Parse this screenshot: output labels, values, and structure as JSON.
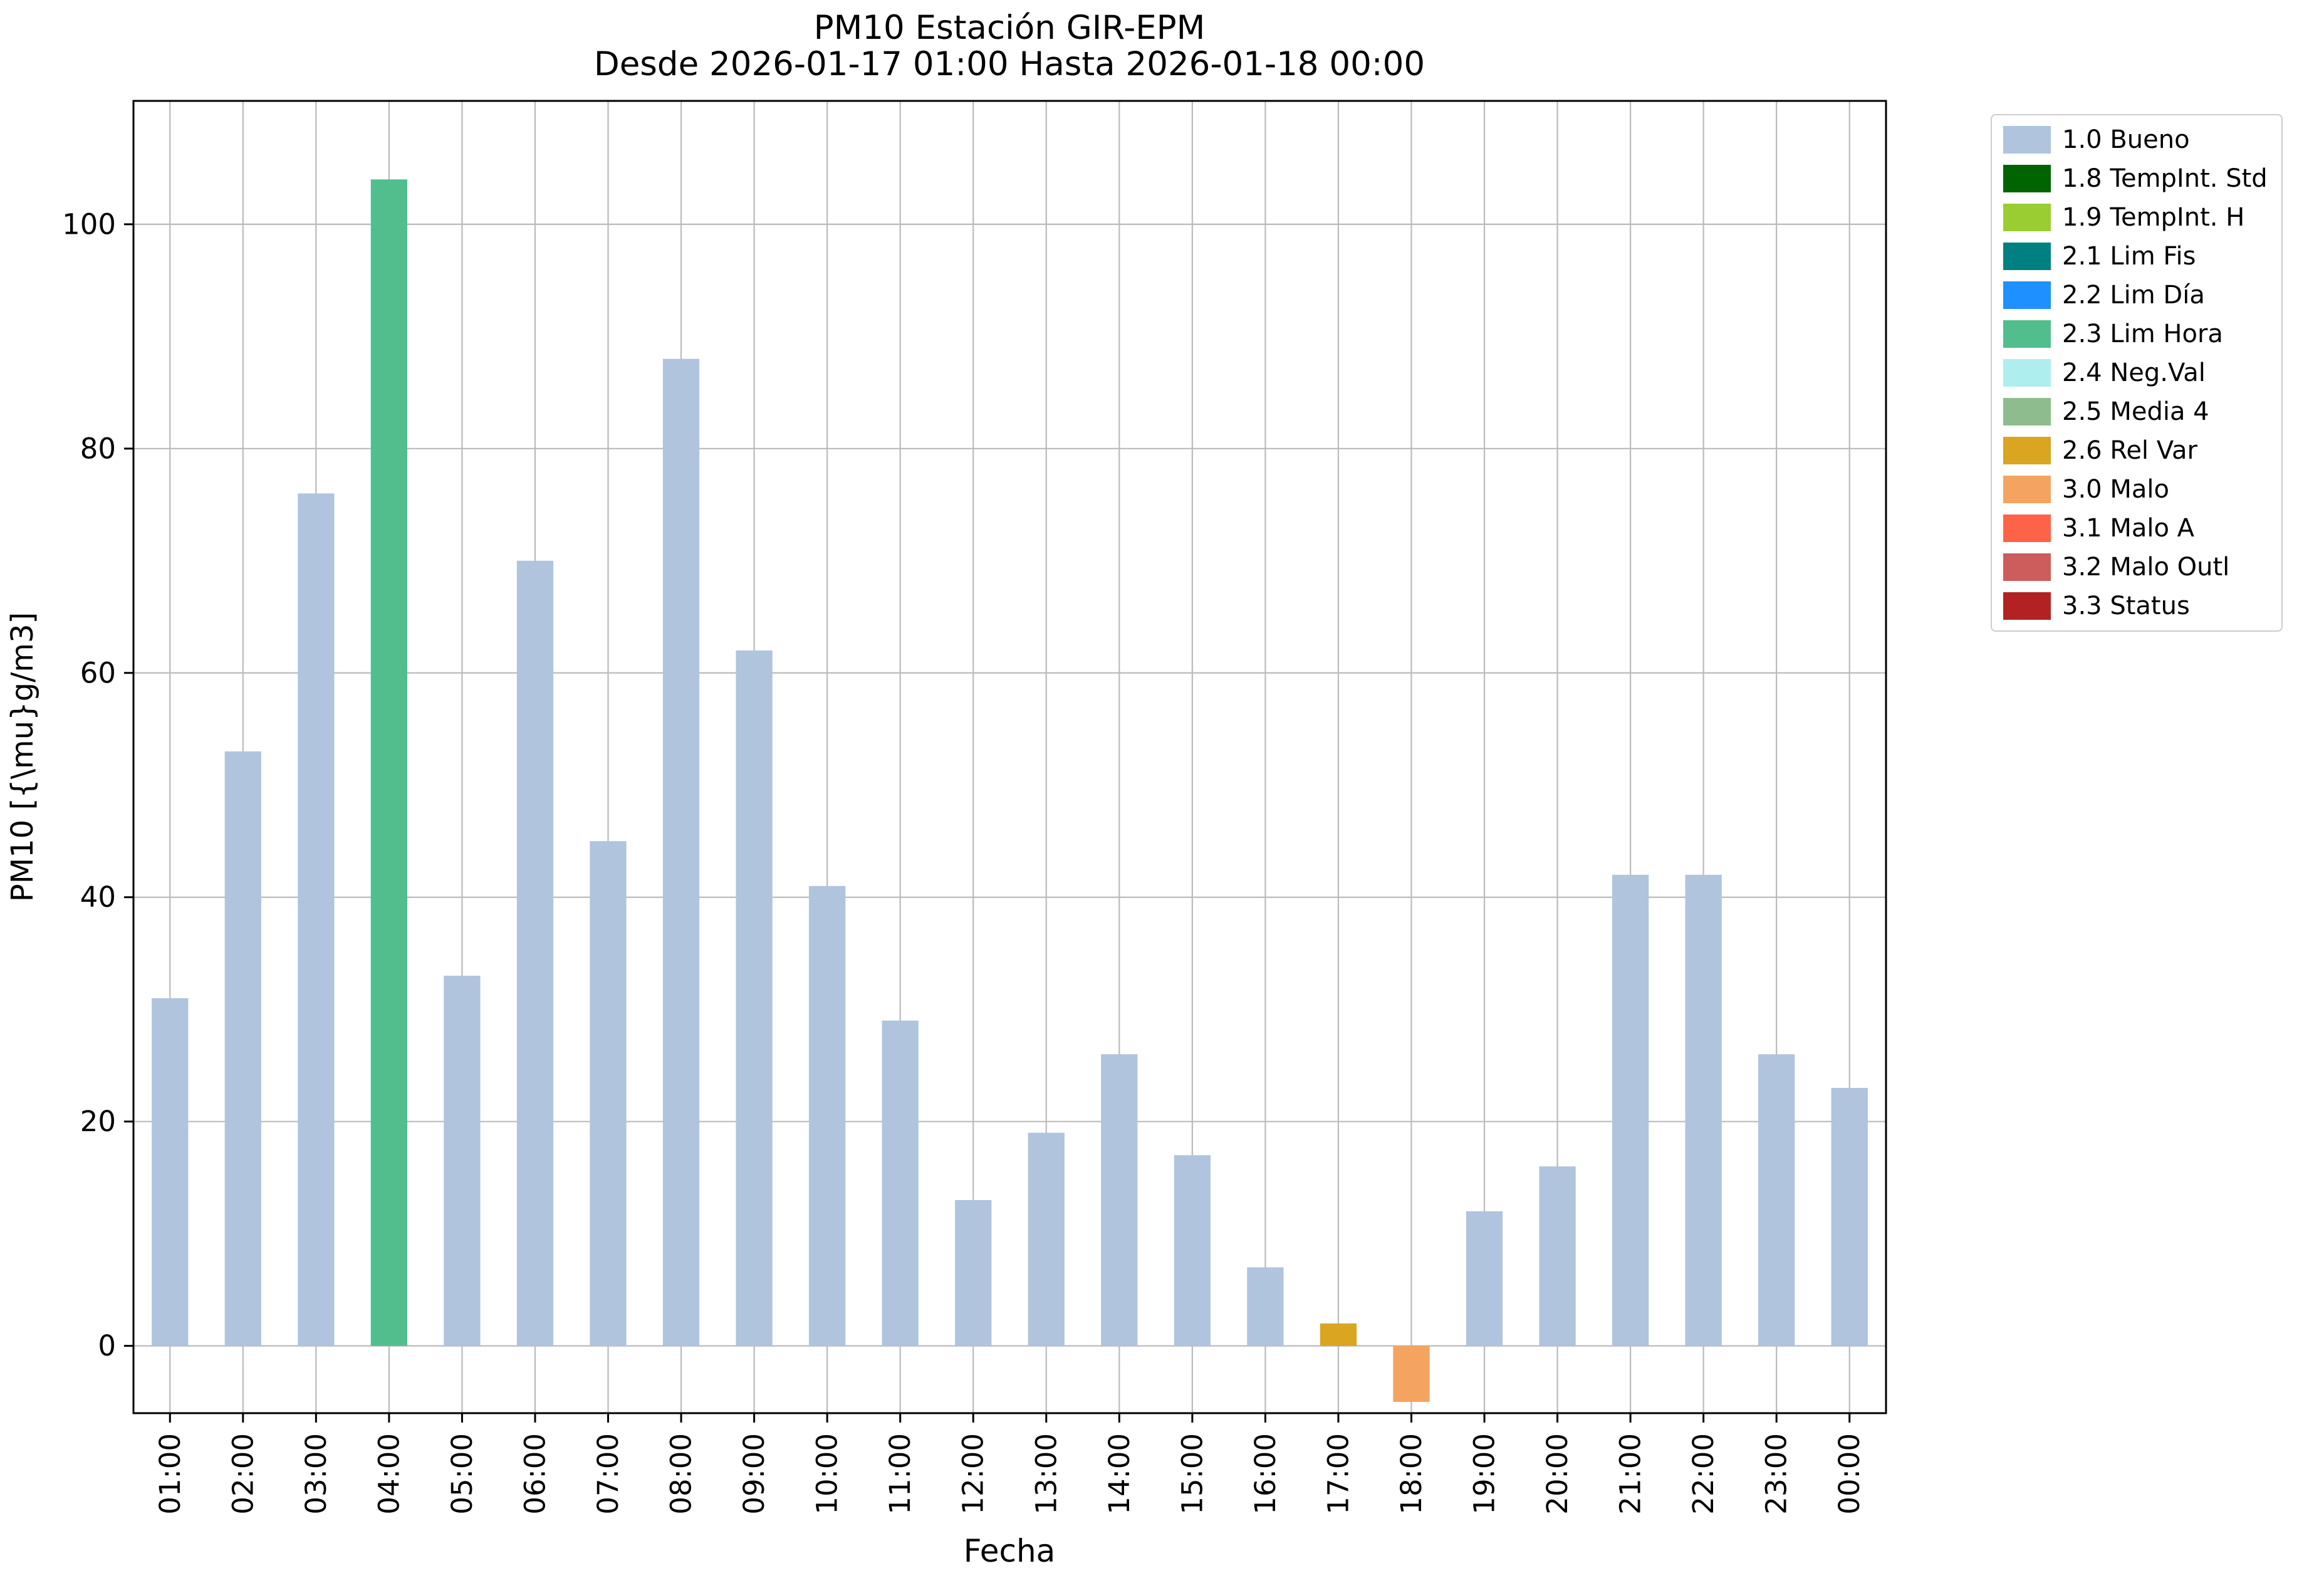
{
  "chart_data": {
    "type": "bar",
    "title": "PM10 Estación GIR-EPM",
    "subtitle": "Desde 2026-01-17 01:00 Hasta 2026-01-18 00:00",
    "xlabel": "Fecha",
    "ylabel": "PM10 [{\\mu}g/m3]",
    "ylim": [
      -6,
      111
    ],
    "yticks": [
      0,
      20,
      40,
      60,
      80,
      100
    ],
    "grid": true,
    "legend_position": "upper right outside",
    "categories": [
      "01:00",
      "02:00",
      "03:00",
      "04:00",
      "05:00",
      "06:00",
      "07:00",
      "08:00",
      "09:00",
      "10:00",
      "11:00",
      "12:00",
      "13:00",
      "14:00",
      "15:00",
      "16:00",
      "17:00",
      "18:00",
      "19:00",
      "20:00",
      "21:00",
      "22:00",
      "23:00",
      "00:00"
    ],
    "values": [
      31,
      53,
      76,
      104,
      33,
      70,
      45,
      88,
      62,
      41,
      29,
      13,
      19,
      26,
      17,
      7,
      2,
      -5,
      12,
      16,
      42,
      42,
      26,
      23
    ],
    "bar_status": [
      "1.0 Bueno",
      "1.0 Bueno",
      "1.0 Bueno",
      "2.3 Lim Hora",
      "1.0 Bueno",
      "1.0 Bueno",
      "1.0 Bueno",
      "1.0 Bueno",
      "1.0 Bueno",
      "1.0 Bueno",
      "1.0 Bueno",
      "1.0 Bueno",
      "1.0 Bueno",
      "1.0 Bueno",
      "1.0 Bueno",
      "1.0 Bueno",
      "2.6 Rel Var",
      "3.0 Malo",
      "1.0 Bueno",
      "1.0 Bueno",
      "1.0 Bueno",
      "1.0 Bueno",
      "1.0 Bueno",
      "1.0 Bueno"
    ],
    "status_colors": {
      "1.0 Bueno": "#b0c4de",
      "1.8 TempInt. Std": "#006400",
      "1.9 TempInt. H": "#9acd32",
      "2.1 Lim Fis": "#008080",
      "2.2 Lim Día": "#1e90ff",
      "2.3 Lim Hora": "#52be8e",
      "2.4 Neg.Val": "#afeeee",
      "2.5 Media 4": "#8fbc8f",
      "2.6 Rel Var": "#daa520",
      "3.0 Malo": "#f4a460",
      "3.1 Malo A": "#ff6347",
      "3.2 Malo Outl": "#cd5c5c",
      "3.3 Status": "#b22222"
    },
    "legend": [
      {
        "label": "1.0 Bueno",
        "color": "#b0c4de"
      },
      {
        "label": "1.8 TempInt. Std",
        "color": "#006400"
      },
      {
        "label": "1.9 TempInt. H",
        "color": "#9acd32"
      },
      {
        "label": "2.1 Lim Fis",
        "color": "#008080"
      },
      {
        "label": "2.2 Lim Día",
        "color": "#1e90ff"
      },
      {
        "label": "2.3 Lim Hora",
        "color": "#52be8e"
      },
      {
        "label": "2.4 Neg.Val",
        "color": "#afeeee"
      },
      {
        "label": "2.5 Media 4",
        "color": "#8fbc8f"
      },
      {
        "label": "2.6 Rel Var",
        "color": "#daa520"
      },
      {
        "label": "3.0 Malo",
        "color": "#f4a460"
      },
      {
        "label": "3.1 Malo A",
        "color": "#ff6347"
      },
      {
        "label": "3.2 Malo Outl",
        "color": "#cd5c5c"
      },
      {
        "label": "3.3 Status",
        "color": "#b22222"
      }
    ]
  }
}
